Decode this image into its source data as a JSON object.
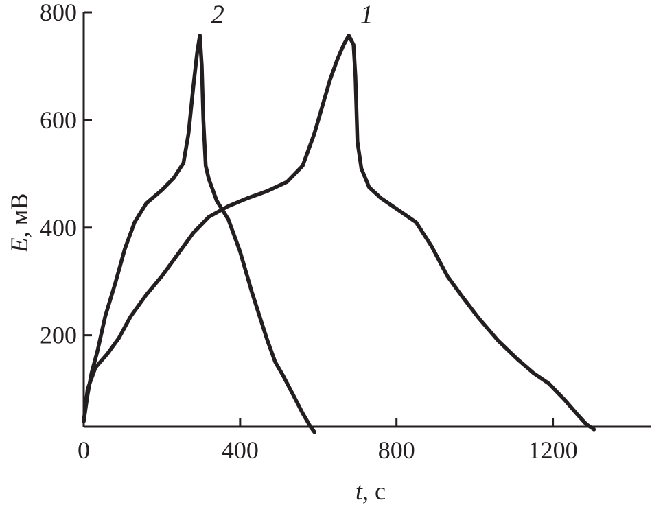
{
  "chart_data": {
    "type": "line",
    "title": "",
    "xlabel": {
      "var": "t",
      "unit": ", с"
    },
    "ylabel": {
      "var": "E",
      "unit": ", мВ"
    },
    "xlim": [
      0,
      1450
    ],
    "ylim": [
      30,
      800
    ],
    "xticks": [
      0,
      400,
      800,
      1200
    ],
    "xtick_labels": [
      "0",
      "400",
      "800",
      "1200"
    ],
    "yticks": [
      200,
      400,
      600,
      800
    ],
    "ytick_labels": [
      "200",
      "400",
      "600",
      "800"
    ],
    "grid": false,
    "series": [
      {
        "name": "1",
        "x": [
          0,
          10,
          30,
          60,
          90,
          120,
          160,
          200,
          240,
          280,
          320,
          370,
          420,
          470,
          520,
          560,
          590,
          610,
          630,
          650,
          665,
          678,
          690,
          695,
          700,
          710,
          730,
          760,
          800,
          850,
          890,
          930,
          970,
          1010,
          1060,
          1110,
          1150,
          1190,
          1230,
          1260,
          1285,
          1305
        ],
        "y": [
          40,
          100,
          140,
          165,
          195,
          235,
          275,
          310,
          350,
          390,
          420,
          440,
          455,
          468,
          485,
          515,
          575,
          625,
          675,
          715,
          740,
          757,
          740,
          680,
          560,
          510,
          475,
          455,
          435,
          410,
          365,
          310,
          270,
          232,
          190,
          155,
          130,
          110,
          80,
          55,
          35,
          25
        ]
      },
      {
        "name": "2",
        "x": [
          0,
          10,
          20,
          35,
          55,
          80,
          105,
          130,
          160,
          200,
          230,
          255,
          268,
          280,
          290,
          297,
          302,
          306,
          312,
          320,
          340,
          370,
          400,
          430,
          450,
          470,
          490,
          510,
          535,
          560,
          580,
          590
        ],
        "y": [
          40,
          90,
          130,
          170,
          235,
          295,
          360,
          410,
          445,
          470,
          492,
          520,
          575,
          660,
          725,
          757,
          700,
          600,
          515,
          490,
          450,
          415,
          355,
          280,
          235,
          190,
          150,
          125,
          90,
          55,
          30,
          20
        ]
      }
    ]
  }
}
